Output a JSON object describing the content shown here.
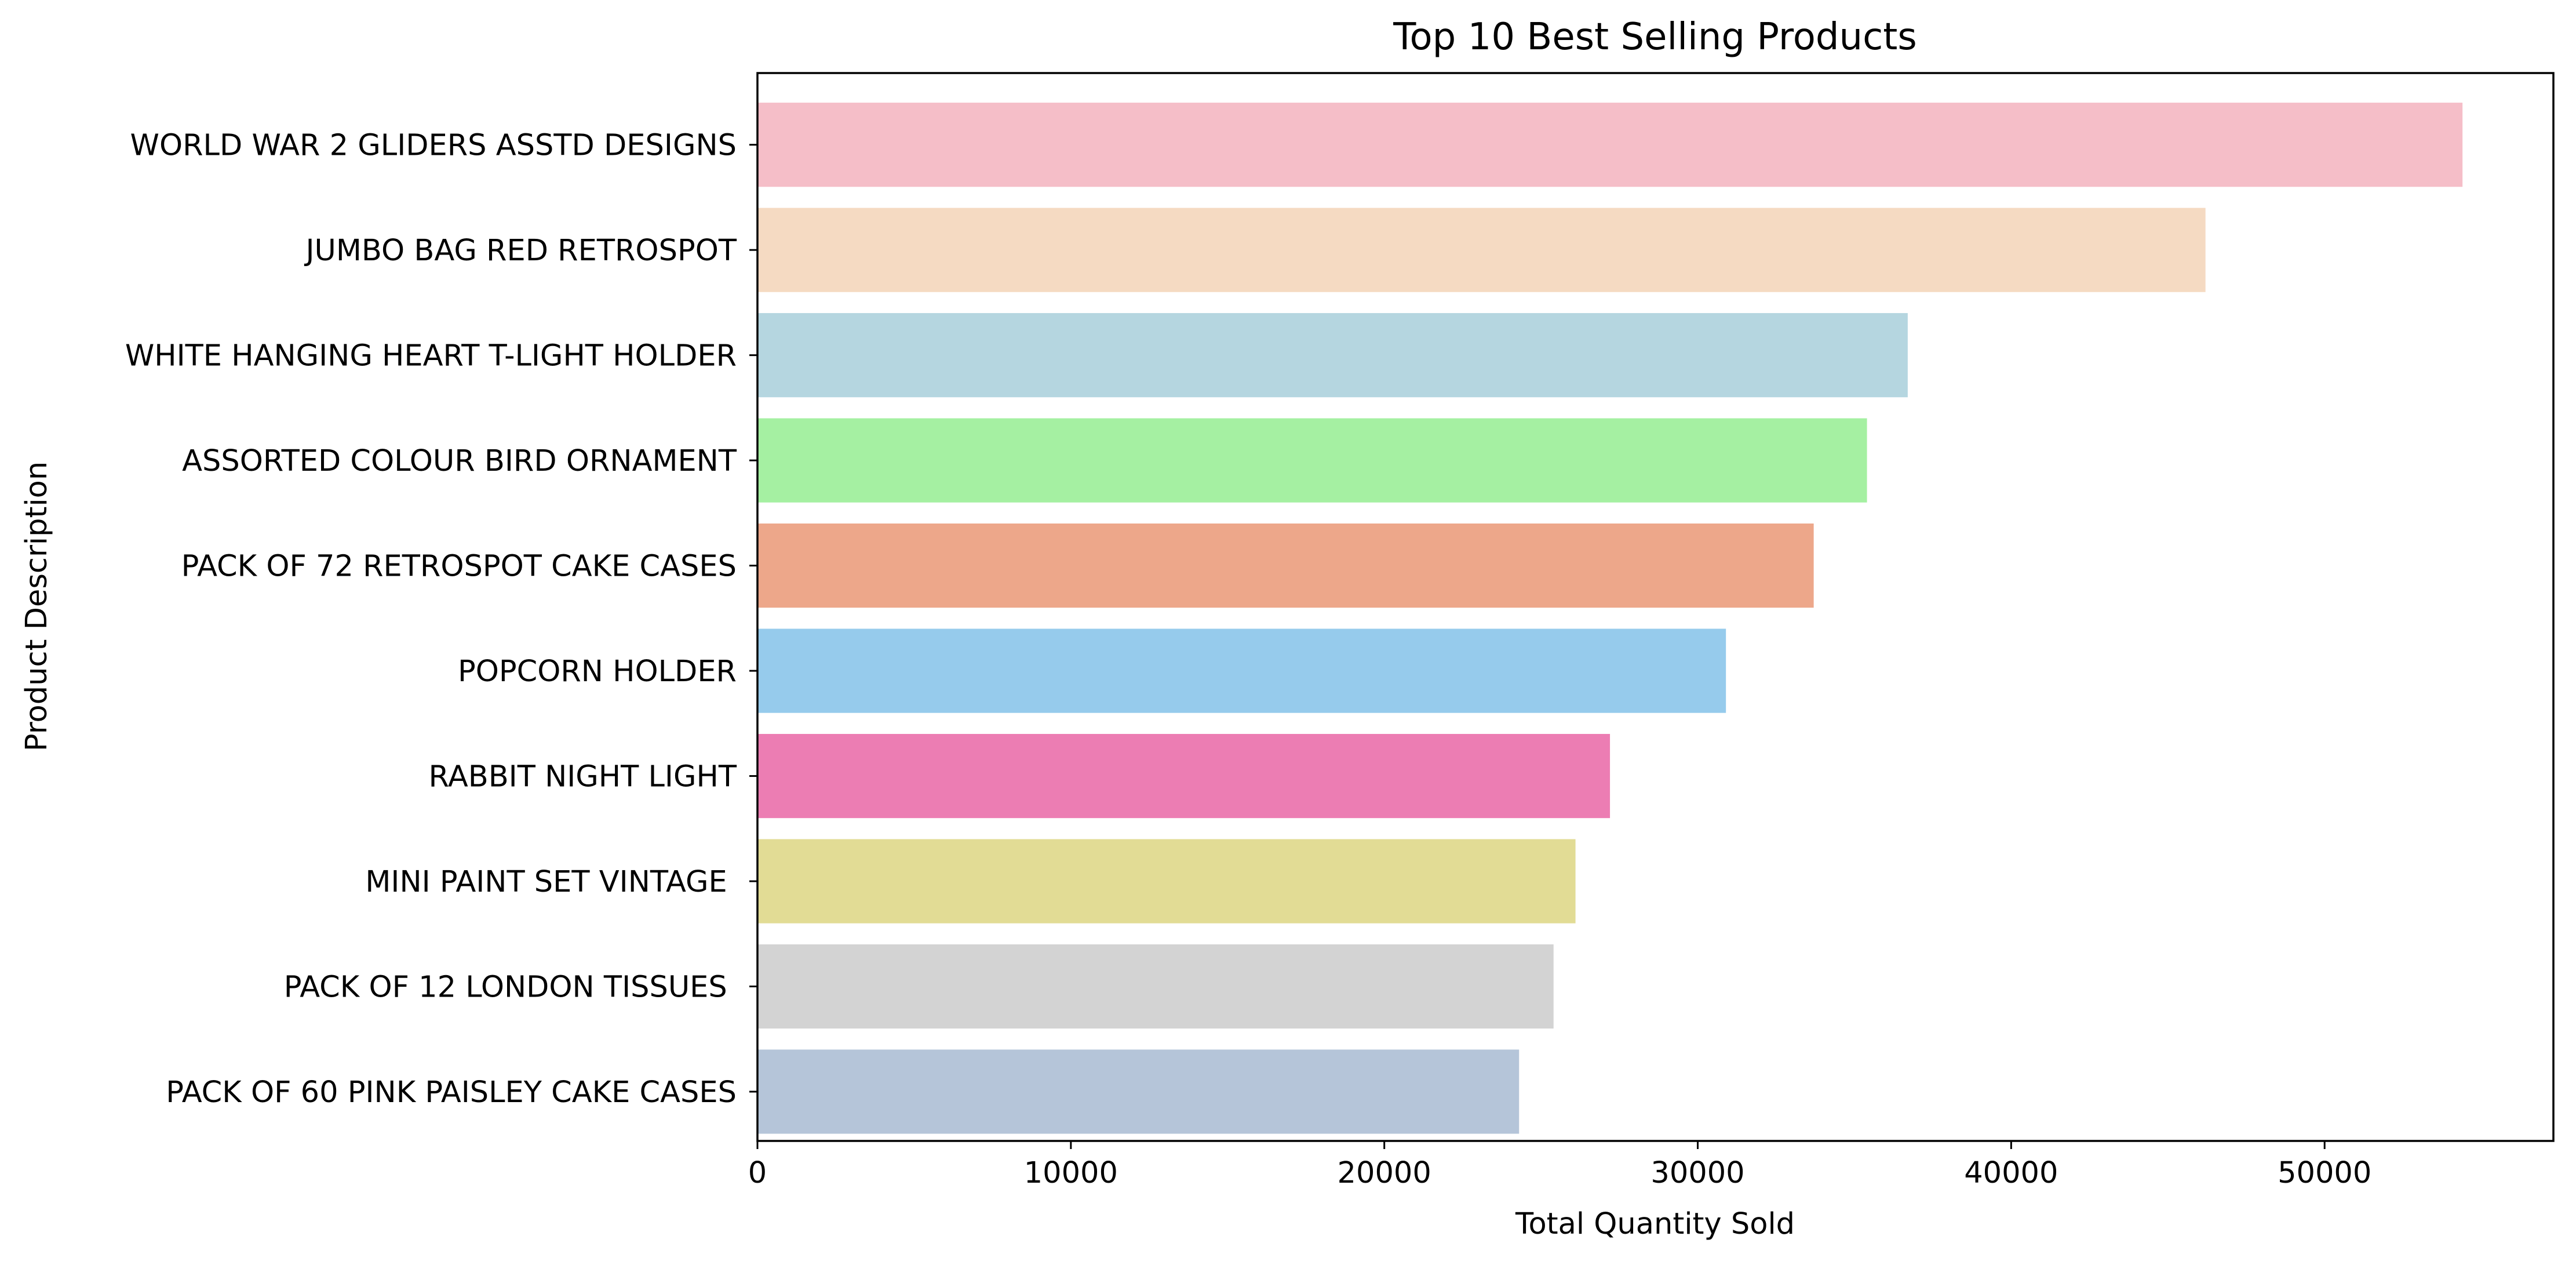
{
  "chart_data": {
    "type": "bar",
    "orientation": "horizontal",
    "title": "Top 10 Best Selling Products",
    "xlabel": "Total Quantity Sold",
    "ylabel": "Product Description",
    "xlim": [
      0,
      57300
    ],
    "xticks": [
      0,
      10000,
      20000,
      30000,
      40000,
      50000
    ],
    "xtick_labels": [
      "0",
      "10000",
      "20000",
      "30000",
      "40000",
      "50000"
    ],
    "grid": false,
    "legend": "none",
    "categories": [
      "WORLD WAR 2 GLIDERS ASSTD DESIGNS",
      "JUMBO BAG RED RETROSPOT",
      "WHITE HANGING HEART T-LIGHT HOLDER",
      "ASSORTED COLOUR BIRD ORNAMENT",
      "PACK OF 72 RETROSPOT CAKE CASES",
      "POPCORN HOLDER",
      "RABBIT NIGHT LIGHT",
      "MINI PAINT SET VINTAGE ",
      "PACK OF 12 LONDON TISSUES ",
      "PACK OF 60 PINK PAISLEY CAKE CASES"
    ],
    "values": [
      54400,
      46200,
      36700,
      35400,
      33700,
      30900,
      27200,
      26100,
      25400,
      24300
    ],
    "colors": [
      "#f5bec8",
      "#f5dac2",
      "#b5d6e0",
      "#a5f0a2",
      "#eda78a",
      "#96cbec",
      "#ec7db3",
      "#e2dc95",
      "#d3d3d3",
      "#b5c5d9"
    ]
  }
}
